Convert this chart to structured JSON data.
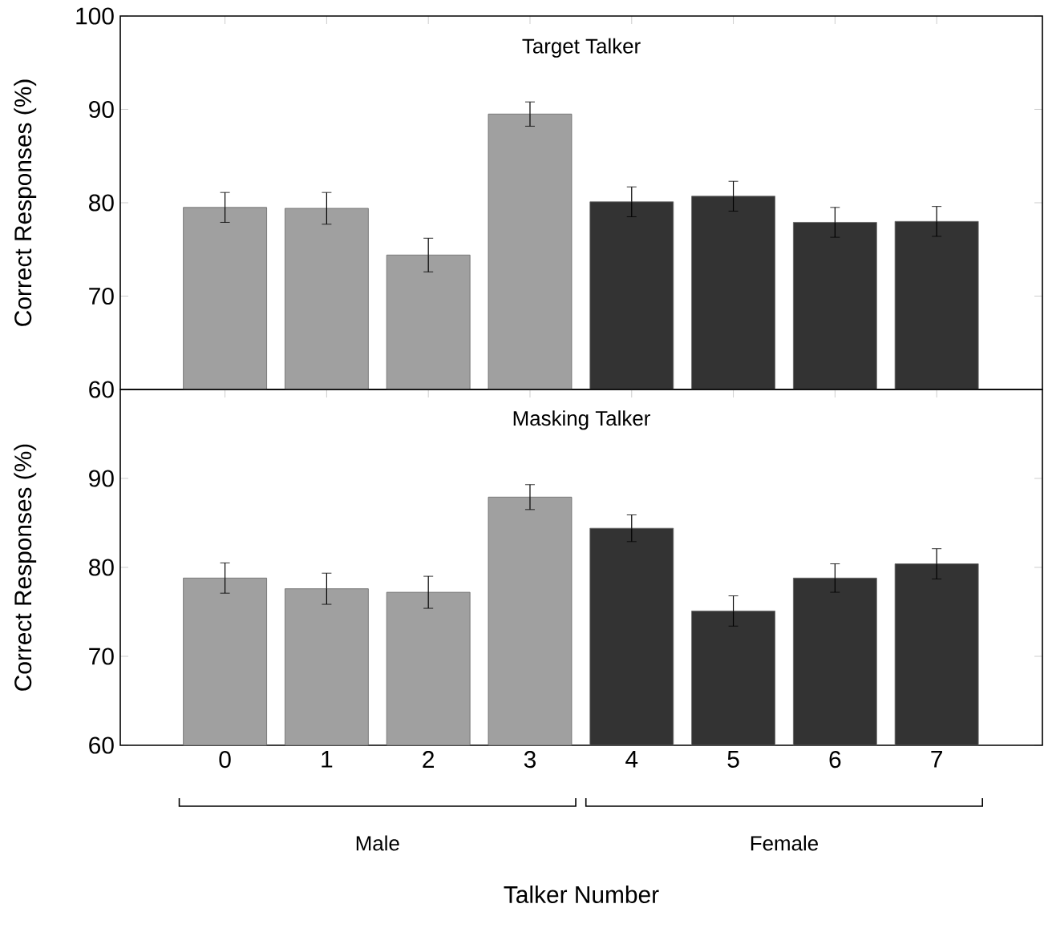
{
  "chart_data": [
    {
      "type": "bar",
      "title": "Target Talker",
      "ylabel": "Correct Responses (%)",
      "categories": [
        "0",
        "1",
        "2",
        "3",
        "4",
        "5",
        "6",
        "7"
      ],
      "values": [
        79.5,
        79.4,
        74.4,
        89.5,
        80.1,
        80.7,
        77.9,
        78.0
      ],
      "errors": [
        1.6,
        1.7,
        1.8,
        1.3,
        1.6,
        1.6,
        1.6,
        1.6
      ],
      "colors": [
        "#a0a0a0",
        "#a0a0a0",
        "#a0a0a0",
        "#a0a0a0",
        "#333333",
        "#333333",
        "#333333",
        "#333333"
      ],
      "ylim": [
        60,
        100
      ],
      "yticks": [
        60,
        70,
        80,
        90,
        100
      ],
      "tick_labels": "y"
    },
    {
      "type": "bar",
      "title": "Masking Talker",
      "ylabel": "Correct Responses (%)",
      "xlabel": "Talker Number",
      "categories": [
        "0",
        "1",
        "2",
        "3",
        "4",
        "5",
        "6",
        "7"
      ],
      "values": [
        78.8,
        77.6,
        77.2,
        87.9,
        84.4,
        75.1,
        78.8,
        80.4
      ],
      "errors": [
        1.7,
        1.75,
        1.8,
        1.4,
        1.5,
        1.7,
        1.6,
        1.7
      ],
      "colors": [
        "#a0a0a0",
        "#a0a0a0",
        "#a0a0a0",
        "#a0a0a0",
        "#333333",
        "#333333",
        "#333333",
        "#333333"
      ],
      "ylim": [
        60,
        100
      ],
      "yticks": [
        60,
        70,
        80,
        90,
        {
          "value": 100,
          "label": null
        }
      ],
      "annotations": [
        "Male",
        "Female"
      ]
    }
  ]
}
